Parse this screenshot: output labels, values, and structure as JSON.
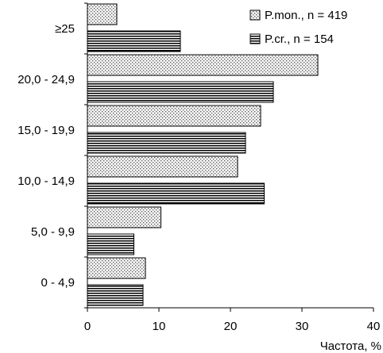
{
  "chart_data": {
    "type": "bar",
    "orientation": "horizontal",
    "categories": [
      "0 - 4,9",
      "5,0 - 9,9",
      "10,0 - 14,9",
      "15,0 - 19,9",
      "20,0 - 24,9",
      "≥25"
    ],
    "series": [
      {
        "name": "P.mon., n = 419",
        "pattern": "dots",
        "values": [
          8.1,
          10.3,
          21.0,
          24.2,
          32.2,
          4.1
        ]
      },
      {
        "name": "P.cr., n = 154",
        "pattern": "stripes",
        "values": [
          7.8,
          6.5,
          24.7,
          22.1,
          26.0,
          13.0
        ]
      }
    ],
    "xlabel": "Частота, %",
    "xlim": [
      0,
      40
    ],
    "xticks": [
      0,
      10,
      20,
      30,
      40
    ],
    "legend_position": "top-right",
    "grid": false
  }
}
